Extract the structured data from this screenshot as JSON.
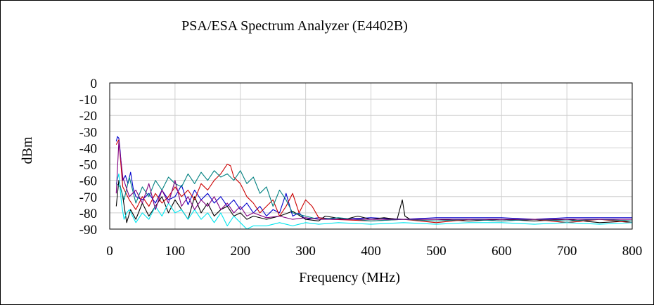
{
  "chart_data": {
    "type": "line",
    "title": "PSA/ESA Spectrum Analyzer (E4402B)",
    "xlabel": "Frequency (MHz)",
    "ylabel": "dBm",
    "xlim": [
      0,
      800
    ],
    "ylim": [
      -90,
      0
    ],
    "xticks": [
      0,
      100,
      200,
      300,
      400,
      500,
      600,
      700,
      800
    ],
    "yticks": [
      0,
      -10,
      -20,
      -30,
      -40,
      -50,
      -60,
      -70,
      -80,
      -90
    ],
    "xtick_labels": [
      "0",
      "100",
      "200",
      "300",
      "400",
      "500",
      "600",
      "700",
      "800"
    ],
    "ytick_labels": [
      "0",
      "-10",
      "-20",
      "-30",
      "-40",
      "-50",
      "-60",
      "-70",
      "-80",
      "-90"
    ],
    "grid": true,
    "legend": "none",
    "colors": [
      "#0000cc",
      "#000000",
      "#cc0000",
      "#008080",
      "#00e5ee",
      "#800080"
    ],
    "series": [
      {
        "color": "#0000cc",
        "x": [
          10,
          12,
          14,
          16,
          18,
          20,
          24,
          28,
          32,
          36,
          40,
          50,
          60,
          70,
          80,
          90,
          100,
          110,
          120,
          130,
          140,
          150,
          160,
          170,
          180,
          190,
          200,
          210,
          220,
          230,
          240,
          250,
          260,
          270,
          280,
          290,
          300,
          320,
          350,
          400,
          450,
          500,
          550,
          600,
          650,
          700,
          750,
          800
        ],
        "y": [
          -36,
          -33,
          -34,
          -42,
          -52,
          -60,
          -57,
          -62,
          -55,
          -65,
          -70,
          -72,
          -68,
          -74,
          -66,
          -72,
          -70,
          -63,
          -75,
          -66,
          -72,
          -68,
          -74,
          -70,
          -76,
          -72,
          -78,
          -74,
          -80,
          -76,
          -82,
          -78,
          -80,
          -68,
          -82,
          -80,
          -84,
          -83,
          -84,
          -83,
          -84,
          -83,
          -83,
          -83,
          -84,
          -83,
          -83,
          -83
        ]
      },
      {
        "color": "#000000",
        "x": [
          10,
          14,
          20,
          26,
          32,
          40,
          50,
          60,
          70,
          80,
          90,
          100,
          110,
          120,
          130,
          140,
          150,
          160,
          170,
          180,
          190,
          200,
          210,
          220,
          240,
          260,
          280,
          300,
          320,
          330,
          360,
          380,
          400,
          420,
          440,
          448,
          452,
          460,
          500,
          550,
          600,
          650,
          700,
          750,
          800
        ],
        "y": [
          -76,
          -60,
          -70,
          -86,
          -78,
          -84,
          -74,
          -82,
          -76,
          -70,
          -80,
          -72,
          -78,
          -84,
          -70,
          -80,
          -74,
          -82,
          -78,
          -76,
          -82,
          -80,
          -84,
          -82,
          -84,
          -82,
          -79,
          -84,
          -85,
          -82,
          -84,
          -82,
          -84,
          -83,
          -84,
          -72,
          -82,
          -84,
          -84,
          -85,
          -84,
          -85,
          -84,
          -86,
          -85
        ]
      },
      {
        "color": "#cc0000",
        "x": [
          10,
          14,
          20,
          30,
          40,
          50,
          60,
          70,
          80,
          90,
          100,
          110,
          120,
          130,
          140,
          150,
          160,
          170,
          180,
          185,
          190,
          200,
          210,
          220,
          230,
          240,
          250,
          260,
          270,
          280,
          290,
          300,
          310,
          320,
          340,
          400,
          450,
          500,
          550,
          600,
          650,
          700,
          750,
          800
        ],
        "y": [
          -38,
          -35,
          -64,
          -72,
          -78,
          -70,
          -76,
          -68,
          -74,
          -70,
          -64,
          -70,
          -66,
          -72,
          -62,
          -66,
          -60,
          -56,
          -50,
          -51,
          -58,
          -62,
          -70,
          -74,
          -80,
          -76,
          -72,
          -82,
          -76,
          -68,
          -80,
          -72,
          -76,
          -83,
          -84,
          -85,
          -84,
          -86,
          -84,
          -85,
          -84,
          -86,
          -84,
          -86
        ]
      },
      {
        "color": "#008080",
        "x": [
          10,
          16,
          22,
          30,
          40,
          50,
          60,
          70,
          80,
          90,
          100,
          110,
          120,
          130,
          140,
          150,
          160,
          170,
          180,
          190,
          200,
          210,
          220,
          230,
          240,
          250,
          260,
          270,
          280,
          300,
          320,
          350,
          400,
          450,
          500,
          550,
          600,
          650,
          700,
          750,
          800
        ],
        "y": [
          -62,
          -64,
          -72,
          -58,
          -74,
          -64,
          -70,
          -60,
          -66,
          -58,
          -62,
          -64,
          -56,
          -62,
          -55,
          -60,
          -54,
          -58,
          -56,
          -60,
          -54,
          -62,
          -58,
          -68,
          -64,
          -76,
          -66,
          -72,
          -80,
          -82,
          -84,
          -83,
          -85,
          -84,
          -85,
          -84,
          -85,
          -84,
          -85,
          -84,
          -85
        ]
      },
      {
        "color": "#00e5ee",
        "x": [
          10,
          14,
          18,
          22,
          26,
          30,
          40,
          50,
          60,
          70,
          80,
          90,
          100,
          110,
          120,
          130,
          140,
          150,
          160,
          170,
          180,
          190,
          200,
          210,
          220,
          240,
          260,
          280,
          300,
          320,
          350,
          400,
          450,
          500,
          550,
          600,
          650,
          700,
          750,
          800
        ],
        "y": [
          -62,
          -56,
          -74,
          -84,
          -80,
          -78,
          -86,
          -80,
          -84,
          -76,
          -82,
          -74,
          -80,
          -78,
          -84,
          -78,
          -84,
          -80,
          -86,
          -80,
          -88,
          -82,
          -86,
          -90,
          -88,
          -88,
          -86,
          -88,
          -86,
          -87,
          -86,
          -87,
          -86,
          -87,
          -86,
          -86,
          -87,
          -86,
          -87,
          -86
        ]
      },
      {
        "color": "#800080",
        "x": [
          10,
          14,
          20,
          30,
          40,
          50,
          60,
          70,
          80,
          90,
          100,
          110,
          120,
          130,
          140,
          150,
          160,
          170,
          180,
          190,
          200,
          210,
          220,
          240,
          260,
          280,
          300,
          320,
          350,
          400,
          450,
          500,
          550,
          600,
          650,
          700,
          750,
          800
        ],
        "y": [
          -68,
          -36,
          -58,
          -70,
          -66,
          -74,
          -62,
          -78,
          -66,
          -74,
          -60,
          -76,
          -70,
          -78,
          -72,
          -76,
          -70,
          -78,
          -74,
          -80,
          -76,
          -82,
          -80,
          -83,
          -82,
          -84,
          -83,
          -84,
          -84,
          -84,
          -84,
          -84,
          -84,
          -84,
          -84,
          -84,
          -84,
          -84
        ]
      }
    ]
  }
}
